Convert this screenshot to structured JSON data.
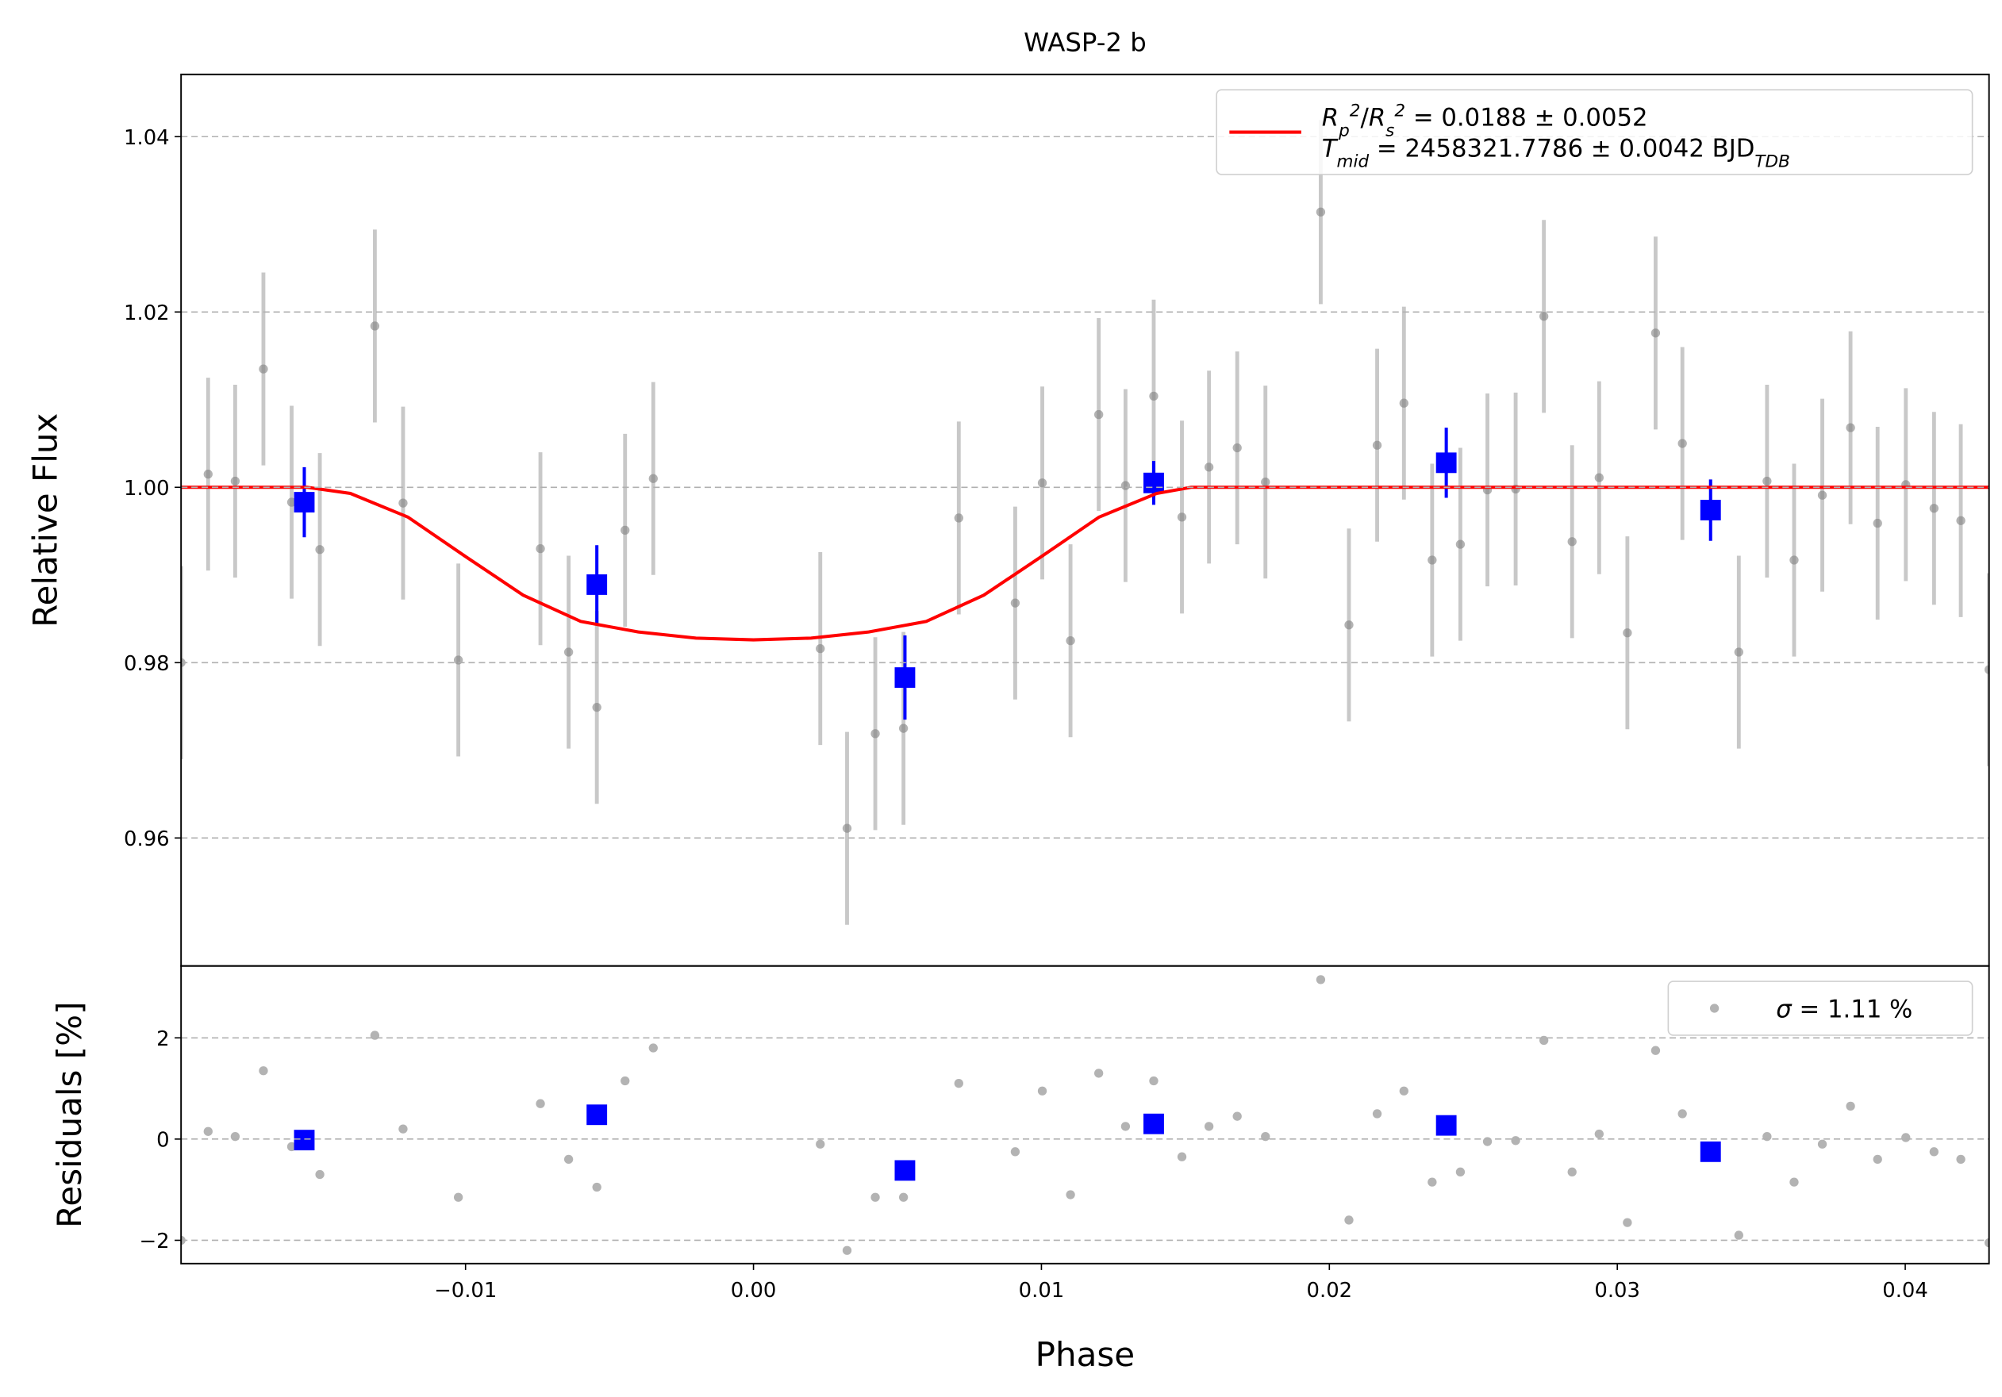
{
  "chart_data": [
    {
      "type": "scatter",
      "title": "WASP-2 b",
      "y_label": "Relative Flux",
      "xlim": [
        -0.01988,
        0.04291
      ],
      "ylim": [
        0.9454,
        1.0471
      ],
      "yticks": [
        1.04,
        1.02,
        {
          "value": 1.0,
          "label": "1.00"
        },
        0.98,
        0.96
      ],
      "grid": true,
      "legend": "upper right",
      "series": [
        {
          "color": "#808080",
          "x": [
            -0.01988,
            -0.01894,
            -0.018,
            -0.01702,
            -0.01604,
            -0.01506,
            -0.01315,
            -0.01217,
            -0.01025,
            -0.0074,
            -0.00642,
            -0.00544,
            -0.00446,
            -0.00348,
            0.00232,
            0.00325,
            0.00423,
            0.00521,
            0.00713,
            0.00909,
            0.01003,
            0.01101,
            0.01199,
            0.01292,
            0.0139,
            0.01488,
            0.01582,
            0.0168,
            0.01778,
            0.0197,
            0.02068,
            0.02166,
            0.02259,
            0.02357,
            0.02455,
            0.02549,
            0.02647,
            0.02745,
            0.02843,
            0.02937,
            0.03035,
            0.03133,
            0.03226,
            0.03422,
            0.0352,
            0.03614,
            0.03712,
            0.0381,
            0.03904,
            0.04002,
            0.041,
            0.04193,
            0.04291
          ],
          "values": [
            0.98,
            1.0015,
            1.0007,
            1.0135,
            0.9983,
            0.9929,
            1.0184,
            0.9982,
            0.9803,
            0.993,
            0.9812,
            0.9749,
            0.9951,
            1.001,
            0.9816,
            0.9611,
            0.9719,
            0.9725,
            0.9965,
            0.9868,
            1.0005,
            0.9825,
            1.0083,
            1.0002,
            1.0104,
            0.9966,
            1.0023,
            1.0045,
            1.0006,
            1.0314,
            0.9843,
            1.0048,
            1.0096,
            0.9917,
            0.9935,
            0.9997,
            0.9998,
            1.0195,
            0.9938,
            1.0011,
            0.9834,
            1.0176,
            1.005,
            0.9812,
            1.0007,
            0.9917,
            0.9991,
            1.0068,
            0.9959,
            1.0003,
            0.9976,
            0.9962,
            0.9792
          ],
          "errors": [
            0.011,
            0.011,
            0.011,
            0.011,
            0.011,
            0.011,
            0.011,
            0.011,
            0.011,
            0.011,
            0.011,
            0.011,
            0.011,
            0.011,
            0.011,
            0.011,
            0.011,
            0.011,
            0.011,
            0.011,
            0.011,
            0.011,
            0.011,
            0.011,
            0.011,
            0.011,
            0.011,
            0.011,
            0.011,
            0.0105,
            0.011,
            0.011,
            0.011,
            0.011,
            0.011,
            0.011,
            0.011,
            0.011,
            0.011,
            0.011,
            0.011,
            0.011,
            0.011,
            0.011,
            0.011,
            0.011,
            0.011,
            0.011,
            0.011,
            0.011,
            0.011,
            0.011,
            0.011
          ]
        },
        {
          "color": "#0000ff",
          "x": [
            -0.0156,
            -0.00544,
            0.00526,
            0.0139,
            0.02406,
            0.03324
          ],
          "values": [
            0.9983,
            0.9889,
            0.9783,
            1.0005,
            1.0028,
            0.9974
          ],
          "errors": [
            0.004,
            0.0045,
            0.0048,
            0.0025,
            0.004,
            0.0035
          ]
        },
        {
          "type": "line",
          "color": "#ff0000",
          "name": [
            "R_p^2/R_s^2 = 0.0188 ± 0.0052",
            "T_{mid} = 2458321.7786 ± 0.0042 BJD_{TDB}"
          ],
          "x": [
            -0.01988,
            -0.0155,
            -0.014,
            -0.012,
            -0.01,
            -0.008,
            -0.006,
            -0.004,
            -0.002,
            0,
            0.002,
            0.004,
            0.006,
            0.008,
            0.01,
            0.012,
            0.014,
            0.0152,
            0.04291
          ],
          "values": [
            1,
            1,
            0.9993,
            0.9966,
            0.9921,
            0.9877,
            0.9847,
            0.9835,
            0.9828,
            0.9826,
            0.9828,
            0.9835,
            0.9847,
            0.9877,
            0.9921,
            0.9966,
            0.9993,
            1,
            1
          ]
        }
      ]
    },
    {
      "type": "scatter",
      "x_label": "Phase",
      "y_label": "Residuals [%]",
      "xlim": [
        -0.01988,
        0.04291
      ],
      "ylim": [
        -2.46,
        3.42
      ],
      "xticks": [
        {
          "value": -0.01,
          "label": "−0.01"
        },
        {
          "value": 0,
          "label": "0.00"
        },
        0.01,
        0.02,
        0.03,
        0.04
      ],
      "yticks": [
        2,
        0,
        {
          "value": -2,
          "label": "−2"
        }
      ],
      "grid": true,
      "legend": "upper right",
      "series": [
        {
          "name": "σ = 1.11 %",
          "color": "#808080",
          "x": [
            -0.01988,
            -0.01894,
            -0.018,
            -0.01702,
            -0.01604,
            -0.01506,
            -0.01315,
            -0.01217,
            -0.01025,
            -0.0074,
            -0.00642,
            -0.00544,
            -0.00446,
            -0.00348,
            0.00232,
            0.00325,
            0.00423,
            0.00521,
            0.00713,
            0.00909,
            0.01003,
            0.01101,
            0.01199,
            0.01292,
            0.0139,
            0.01488,
            0.01582,
            0.0168,
            0.01778,
            0.0197,
            0.02068,
            0.02166,
            0.02259,
            0.02357,
            0.02455,
            0.02549,
            0.02647,
            0.02745,
            0.02843,
            0.02937,
            0.03035,
            0.03133,
            0.03226,
            0.03422,
            0.0352,
            0.03614,
            0.03712,
            0.0381,
            0.03904,
            0.04002,
            0.041,
            0.04193,
            0.04291
          ],
          "values": [
            -2.0,
            0.15,
            0.05,
            1.35,
            -0.15,
            -0.7,
            2.05,
            0.2,
            -1.15,
            0.7,
            -0.4,
            -0.95,
            1.15,
            1.8,
            -0.1,
            -2.2,
            -1.15,
            -1.15,
            1.1,
            -0.25,
            0.95,
            -1.1,
            1.3,
            0.25,
            1.15,
            -0.35,
            0.25,
            0.45,
            0.05,
            3.15,
            -1.6,
            0.5,
            0.95,
            -0.85,
            -0.65,
            -0.05,
            -0.03,
            1.95,
            -0.65,
            0.1,
            -1.65,
            1.75,
            0.5,
            -1.9,
            0.05,
            -0.85,
            -0.1,
            0.65,
            -0.4,
            0.03,
            -0.25,
            -0.4,
            -2.05
          ]
        },
        {
          "color": "#0000ff",
          "x": [
            -0.0156,
            -0.00544,
            0.00526,
            0.0139,
            0.02406,
            0.03324
          ],
          "values": [
            -0.02,
            0.48,
            -0.62,
            0.3,
            0.27,
            -0.25
          ]
        }
      ]
    }
  ]
}
